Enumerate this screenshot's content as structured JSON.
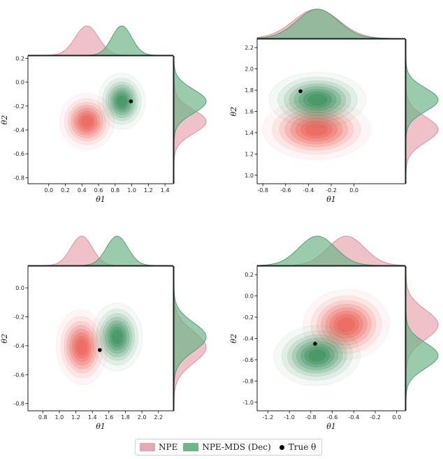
{
  "legend": {
    "npe_label": "NPE",
    "mds_label": "NPE-MDS (Dec)",
    "true_label": "True θ"
  },
  "colors": {
    "npe": "#dc8a99",
    "npe_fill": "#e8a6b2",
    "npe_contour": "#e8574a",
    "mds": "#4f9a6c",
    "mds_fill": "#6fb58a",
    "mds_contour": "#2f8a55",
    "true": "#000000"
  },
  "chart_data": [
    {
      "type": "contour",
      "xlabel": "θ1",
      "ylabel": "θ2",
      "xlim": [
        -0.25,
        1.5
      ],
      "ylim": [
        -0.85,
        0.22
      ],
      "xticks": [
        "0.0",
        "0.2",
        "0.4",
        "0.6",
        "0.8",
        "1.0",
        "1.2",
        "1.4"
      ],
      "yticks": [
        "-0.8",
        "-0.6",
        "-0.4",
        "-0.2",
        "0.0",
        "0.2"
      ],
      "true_theta": [
        0.99,
        -0.16
      ],
      "series": [
        {
          "name": "NPE",
          "center": [
            0.46,
            -0.33
          ],
          "sigma": [
            0.14,
            0.1
          ],
          "rho": 0.15
        },
        {
          "name": "NPE-MDS (Dec)",
          "center": [
            0.88,
            -0.16
          ],
          "sigma": [
            0.12,
            0.1
          ],
          "rho": 0.05
        }
      ]
    },
    {
      "type": "contour",
      "xlabel": "θ1",
      "ylabel": "θ2",
      "xlim": [
        -0.85,
        0.45
      ],
      "ylim": [
        0.92,
        2.28
      ],
      "xticks": [
        "-0.8",
        "-0.6",
        "-0.4",
        "-0.2",
        "0.0"
      ],
      "yticks": [
        "1.0",
        "1.2",
        "1.4",
        "1.6",
        "1.8",
        "2.0",
        "2.2"
      ],
      "true_theta": [
        -0.47,
        1.79
      ],
      "series": [
        {
          "name": "NPE",
          "center": [
            -0.33,
            1.43
          ],
          "sigma": [
            0.2,
            0.12
          ],
          "rho": 0.0
        },
        {
          "name": "NPE-MDS (Dec)",
          "center": [
            -0.32,
            1.71
          ],
          "sigma": [
            0.18,
            0.11
          ],
          "rho": 0.0
        }
      ]
    },
    {
      "type": "contour",
      "xlabel": "θ1",
      "ylabel": "θ2",
      "xlim": [
        0.62,
        2.38
      ],
      "ylim": [
        -0.85,
        0.15
      ],
      "xticks": [
        "0.8",
        "1.0",
        "1.2",
        "1.4",
        "1.6",
        "1.8",
        "2.0",
        "2.2"
      ],
      "yticks": [
        "-0.8",
        "-0.6",
        "-0.4",
        "-0.2",
        "0.0"
      ],
      "true_theta": [
        1.49,
        -0.43
      ],
      "series": [
        {
          "name": "NPE",
          "center": [
            1.27,
            -0.41
          ],
          "sigma": [
            0.13,
            0.11
          ],
          "rho": 0.1
        },
        {
          "name": "NPE-MDS (Dec)",
          "center": [
            1.7,
            -0.34
          ],
          "sigma": [
            0.13,
            0.1
          ],
          "rho": 0.0
        }
      ]
    },
    {
      "type": "contour",
      "xlabel": "θ1",
      "ylabel": "θ2",
      "xlim": [
        -1.3,
        0.08
      ],
      "ylim": [
        -1.08,
        0.28
      ],
      "xticks": [
        "-1.2",
        "-1.0",
        "-0.8",
        "-0.6",
        "-0.4",
        "-0.2",
        "0.0"
      ],
      "yticks": [
        "-1.0",
        "-0.8",
        "-0.6",
        "-0.4",
        "-0.2",
        "0.0",
        "0.2"
      ],
      "true_theta": [
        -0.76,
        -0.45
      ],
      "series": [
        {
          "name": "NPE",
          "center": [
            -0.47,
            -0.27
          ],
          "sigma": [
            0.17,
            0.14
          ],
          "rho": 0.1
        },
        {
          "name": "NPE-MDS (Dec)",
          "center": [
            -0.74,
            -0.56
          ],
          "sigma": [
            0.17,
            0.12
          ],
          "rho": 0.1
        }
      ]
    }
  ]
}
